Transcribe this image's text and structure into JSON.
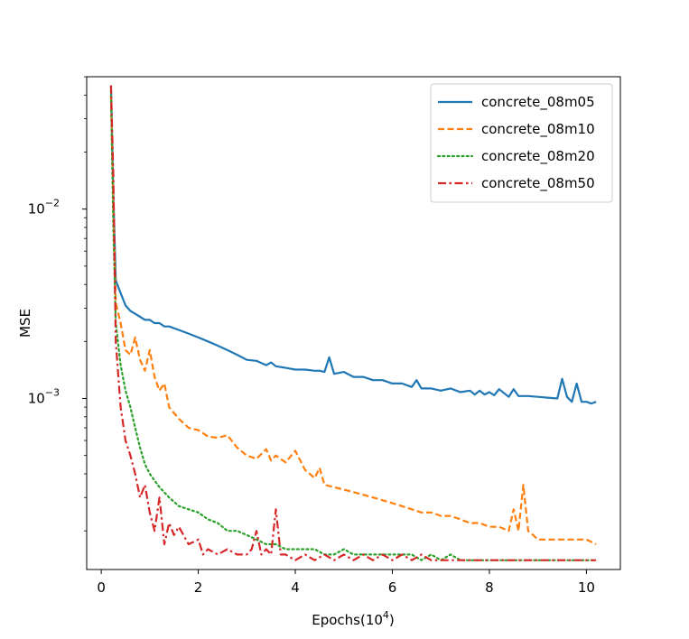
{
  "chart_data": {
    "type": "line",
    "title": "",
    "xlabel": "Epochs(10",
    "xlabel_sup": "4",
    "xlabel_close": ")",
    "ylabel": "MSE",
    "xlim": [
      -0.3,
      10.7
    ],
    "ylim": [
      0.000125,
      0.05
    ],
    "yscale": "log",
    "x_ticks": [
      0,
      2,
      4,
      6,
      8,
      10
    ],
    "x_tick_labels": [
      "0",
      "2",
      "4",
      "6",
      "8",
      "10"
    ],
    "y_ticks": [
      0.01,
      0.001
    ],
    "y_tick_labels": [
      {
        "base": "10",
        "exp": "−2"
      },
      {
        "base": "10",
        "exp": "−3"
      }
    ],
    "legend_position": "upper right",
    "series": [
      {
        "name": "concrete_08m05",
        "color": "#1f77b4",
        "style": "solid",
        "x": [
          0.2,
          0.25,
          0.3,
          0.4,
          0.5,
          0.6,
          0.7,
          0.8,
          0.9,
          1.0,
          1.1,
          1.2,
          1.3,
          1.4,
          1.6,
          1.8,
          2.0,
          2.2,
          2.3,
          2.4,
          2.6,
          2.8,
          3.0,
          3.2,
          3.4,
          3.5,
          3.6,
          3.8,
          4.0,
          4.2,
          4.4,
          4.5,
          4.6,
          4.7,
          4.8,
          5.0,
          5.2,
          5.4,
          5.6,
          5.8,
          6.0,
          6.2,
          6.4,
          6.5,
          6.6,
          6.8,
          7.0,
          7.2,
          7.4,
          7.6,
          7.7,
          7.8,
          7.9,
          8.0,
          8.1,
          8.2,
          8.4,
          8.5,
          8.6,
          8.8,
          9.0,
          9.2,
          9.4,
          9.5,
          9.6,
          9.7,
          9.8,
          9.9,
          10.0,
          10.1,
          10.2
        ],
        "values": [
          0.045,
          0.012,
          0.0042,
          0.0036,
          0.0031,
          0.0029,
          0.0028,
          0.0027,
          0.0026,
          0.0026,
          0.0025,
          0.0025,
          0.0024,
          0.0024,
          0.0023,
          0.0022,
          0.0021,
          0.002,
          0.00195,
          0.0019,
          0.0018,
          0.0017,
          0.0016,
          0.00158,
          0.0015,
          0.00155,
          0.00148,
          0.00145,
          0.00142,
          0.00142,
          0.0014,
          0.0014,
          0.00138,
          0.00165,
          0.00135,
          0.00138,
          0.0013,
          0.0013,
          0.00125,
          0.00125,
          0.0012,
          0.0012,
          0.00115,
          0.00125,
          0.00113,
          0.00113,
          0.0011,
          0.00113,
          0.00108,
          0.0011,
          0.00105,
          0.0011,
          0.00105,
          0.00108,
          0.00104,
          0.00112,
          0.00102,
          0.00112,
          0.00103,
          0.00103,
          0.00102,
          0.00101,
          0.001,
          0.00127,
          0.00102,
          0.00096,
          0.0012,
          0.00096,
          0.00096,
          0.00094,
          0.00096
        ]
      },
      {
        "name": "concrete_08m10",
        "color": "#ff7f0e",
        "style": "dashed",
        "x": [
          0.2,
          0.25,
          0.3,
          0.4,
          0.5,
          0.6,
          0.7,
          0.8,
          0.9,
          1.0,
          1.1,
          1.2,
          1.3,
          1.4,
          1.6,
          1.8,
          2.0,
          2.2,
          2.4,
          2.6,
          2.8,
          3.0,
          3.2,
          3.4,
          3.5,
          3.6,
          3.8,
          4.0,
          4.2,
          4.4,
          4.5,
          4.6,
          4.8,
          5.0,
          5.2,
          5.4,
          5.6,
          5.8,
          6.0,
          6.2,
          6.4,
          6.6,
          6.8,
          7.0,
          7.2,
          7.4,
          7.6,
          7.8,
          8.0,
          8.2,
          8.4,
          8.5,
          8.6,
          8.7,
          8.8,
          8.9,
          9.0,
          9.2,
          9.4,
          9.6,
          9.8,
          10.0,
          10.2
        ],
        "values": [
          0.04,
          0.01,
          0.0032,
          0.0025,
          0.0018,
          0.0017,
          0.0021,
          0.0016,
          0.0014,
          0.0018,
          0.0013,
          0.0011,
          0.0012,
          0.0009,
          0.00078,
          0.0007,
          0.00068,
          0.00063,
          0.00062,
          0.00064,
          0.00055,
          0.0005,
          0.00048,
          0.00054,
          0.00047,
          0.0005,
          0.00046,
          0.00053,
          0.00042,
          0.00038,
          0.00043,
          0.00035,
          0.00034,
          0.00033,
          0.00032,
          0.00031,
          0.0003,
          0.00029,
          0.00028,
          0.00027,
          0.00026,
          0.00025,
          0.00025,
          0.00024,
          0.00024,
          0.00023,
          0.00022,
          0.00022,
          0.00021,
          0.00021,
          0.0002,
          0.00026,
          0.0002,
          0.00035,
          0.0002,
          0.00019,
          0.00018,
          0.00018,
          0.00018,
          0.00018,
          0.00018,
          0.00018,
          0.00017
        ]
      },
      {
        "name": "concrete_08m20",
        "color": "#2ca02c",
        "style": "dotted",
        "x": [
          0.2,
          0.25,
          0.3,
          0.4,
          0.5,
          0.6,
          0.7,
          0.8,
          0.9,
          1.0,
          1.2,
          1.4,
          1.6,
          1.8,
          2.0,
          2.2,
          2.4,
          2.6,
          2.8,
          3.0,
          3.2,
          3.4,
          3.6,
          3.8,
          4.0,
          4.2,
          4.4,
          4.6,
          4.8,
          5.0,
          5.2,
          5.4,
          5.6,
          5.8,
          6.0,
          6.2,
          6.4,
          6.6,
          6.8,
          7.0,
          7.2,
          7.4,
          7.6,
          7.8,
          8.0,
          8.2,
          8.4,
          8.6,
          8.8,
          9.0,
          9.2,
          9.4,
          9.6,
          9.8,
          10.0,
          10.2
        ],
        "values": [
          0.042,
          0.008,
          0.0025,
          0.0015,
          0.0011,
          0.0009,
          0.0007,
          0.00055,
          0.00045,
          0.0004,
          0.00034,
          0.0003,
          0.00027,
          0.00026,
          0.00025,
          0.00023,
          0.00022,
          0.0002,
          0.0002,
          0.00019,
          0.00018,
          0.00017,
          0.00017,
          0.00016,
          0.00016,
          0.00016,
          0.00016,
          0.00015,
          0.00015,
          0.00016,
          0.00015,
          0.00015,
          0.00015,
          0.00015,
          0.00015,
          0.00015,
          0.00015,
          0.00014,
          0.00015,
          0.00014,
          0.00015,
          0.00014,
          0.00014,
          0.00014,
          0.00014,
          0.00014,
          0.00014,
          0.00014,
          0.00014,
          0.00014,
          0.00014,
          0.00014,
          0.00014,
          0.00014,
          0.00014,
          0.00014
        ]
      },
      {
        "name": "concrete_08m50",
        "color": "#d62728",
        "style": "dashdot",
        "x": [
          0.2,
          0.25,
          0.3,
          0.4,
          0.5,
          0.6,
          0.7,
          0.8,
          0.9,
          1.0,
          1.1,
          1.2,
          1.3,
          1.4,
          1.5,
          1.6,
          1.8,
          2.0,
          2.1,
          2.2,
          2.4,
          2.6,
          2.8,
          3.0,
          3.1,
          3.2,
          3.3,
          3.4,
          3.5,
          3.6,
          3.7,
          3.8,
          4.0,
          4.2,
          4.4,
          4.6,
          4.8,
          5.0,
          5.2,
          5.4,
          5.6,
          5.8,
          6.0,
          6.2,
          6.4,
          6.6,
          6.8,
          7.0,
          7.2,
          7.4,
          7.6,
          7.8,
          8.0,
          8.2,
          8.4,
          8.6,
          8.8,
          9.0,
          9.2,
          9.4,
          9.6,
          9.8,
          10.0,
          10.2
        ],
        "values": [
          0.045,
          0.015,
          0.002,
          0.0009,
          0.0006,
          0.0005,
          0.0004,
          0.0003,
          0.00035,
          0.00025,
          0.0002,
          0.0003,
          0.00017,
          0.00022,
          0.00019,
          0.00021,
          0.00017,
          0.00018,
          0.00015,
          0.00016,
          0.00015,
          0.00016,
          0.00015,
          0.00015,
          0.00016,
          0.0002,
          0.00015,
          0.00016,
          0.00015,
          0.00026,
          0.00015,
          0.00015,
          0.00014,
          0.00015,
          0.00014,
          0.00015,
          0.00014,
          0.00015,
          0.00014,
          0.00015,
          0.00014,
          0.00015,
          0.00014,
          0.00015,
          0.00014,
          0.00015,
          0.00014,
          0.00014,
          0.00014,
          0.00014,
          0.00014,
          0.00014,
          0.00014,
          0.00014,
          0.00014,
          0.00014,
          0.00014,
          0.00014,
          0.00014,
          0.00014,
          0.00014,
          0.00014,
          0.00014,
          0.00014
        ]
      }
    ]
  }
}
